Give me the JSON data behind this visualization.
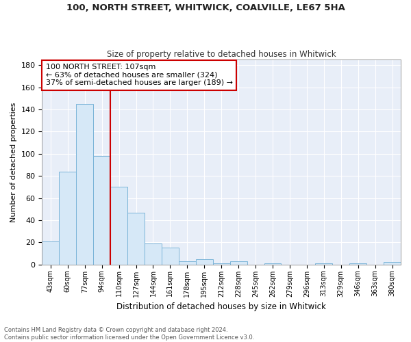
{
  "title1": "100, NORTH STREET, WHITWICK, COALVILLE, LE67 5HA",
  "title2": "Size of property relative to detached houses in Whitwick",
  "xlabel": "Distribution of detached houses by size in Whitwick",
  "ylabel": "Number of detached properties",
  "bar_labels": [
    "43sqm",
    "60sqm",
    "77sqm",
    "94sqm",
    "110sqm",
    "127sqm",
    "144sqm",
    "161sqm",
    "178sqm",
    "195sqm",
    "212sqm",
    "228sqm",
    "245sqm",
    "262sqm",
    "279sqm",
    "296sqm",
    "313sqm",
    "329sqm",
    "346sqm",
    "363sqm",
    "380sqm"
  ],
  "bar_values": [
    21,
    84,
    145,
    98,
    70,
    47,
    19,
    15,
    3,
    5,
    1,
    3,
    0,
    1,
    0,
    0,
    1,
    0,
    1,
    0,
    2
  ],
  "bar_color": "#d6e8f7",
  "bar_edge_color": "#7ab4d8",
  "vline_x_index": 3.5,
  "vline_color": "#cc0000",
  "annotation_text": "100 NORTH STREET: 107sqm\n← 63% of detached houses are smaller (324)\n37% of semi-detached houses are larger (189) →",
  "annotation_box_color": "#ffffff",
  "annotation_box_edge": "#cc0000",
  "ylim": [
    0,
    185
  ],
  "yticks": [
    0,
    20,
    40,
    60,
    80,
    100,
    120,
    140,
    160,
    180
  ],
  "bg_color": "#e8eef8",
  "grid_color": "#ffffff",
  "fig_bg_color": "#ffffff",
  "footer_line1": "Contains HM Land Registry data © Crown copyright and database right 2024.",
  "footer_line2": "Contains public sector information licensed under the Open Government Licence v3.0."
}
